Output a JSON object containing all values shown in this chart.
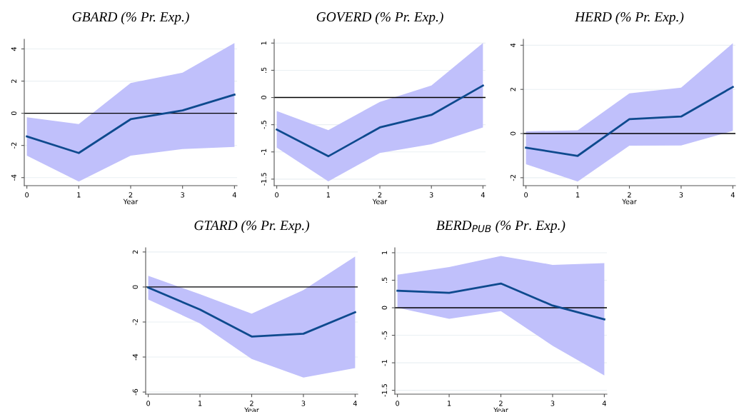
{
  "chart_data": [
    {
      "type": "line",
      "title": "GBARD (% Pr. Exp.)",
      "xlabel": "Year",
      "x": [
        0,
        1,
        2,
        3,
        4
      ],
      "xlim": [
        -0.05,
        4.05
      ],
      "xticks": [
        0,
        1,
        2,
        3,
        4
      ],
      "ylim": [
        -4.5,
        4.6
      ],
      "yticks": [
        -4,
        -2,
        0,
        2,
        4
      ],
      "grid": "y",
      "series": [
        {
          "color": "#0e4a8e",
          "values": [
            -1.44,
            -2.47,
            -0.37,
            0.18,
            1.16
          ],
          "lower": [
            -2.64,
            -4.25,
            -2.64,
            -2.22,
            -2.09
          ],
          "upper": [
            -0.25,
            -0.67,
            1.88,
            2.52,
            4.37
          ]
        }
      ],
      "ref_lines": [
        {
          "axis": "y",
          "value": 0,
          "color": "#000000"
        }
      ]
    },
    {
      "type": "line",
      "title": "GOVERD (% Pr. Exp.)",
      "xlabel": "Year",
      "x": [
        0,
        1,
        2,
        3,
        4
      ],
      "xlim": [
        -0.05,
        4.05
      ],
      "xticks": [
        0,
        1,
        2,
        3,
        4
      ],
      "ylim": [
        -1.62,
        1.07
      ],
      "yticks": [
        {
          "value": -1.5,
          "label": "-1.5"
        },
        {
          "value": -1,
          "label": "-1"
        },
        {
          "value": -0.5,
          "label": "-.5"
        },
        {
          "value": 0,
          "label": "0"
        },
        {
          "value": 0.5,
          "label": ".5"
        },
        {
          "value": 1,
          "label": "1"
        }
      ],
      "grid": "y",
      "series": [
        {
          "color": "#0e4a8e",
          "values": [
            -0.59,
            -1.08,
            -0.55,
            -0.32,
            0.22
          ],
          "lower": [
            -0.92,
            -1.54,
            -1.02,
            -0.86,
            -0.55
          ],
          "upper": [
            -0.25,
            -0.6,
            -0.08,
            0.22,
            1.0
          ]
        }
      ],
      "ref_lines": [
        {
          "axis": "y",
          "value": 0,
          "color": "#000000"
        }
      ]
    },
    {
      "type": "line",
      "title": "HERD (% Pr. Exp.)",
      "xlabel": "Year",
      "x": [
        0,
        1,
        2,
        3,
        4
      ],
      "xlim": [
        -0.05,
        4.05
      ],
      "xticks": [
        0,
        1,
        2,
        3,
        4
      ],
      "ylim": [
        -2.36,
        4.27
      ],
      "yticks": [
        -2,
        0,
        2,
        4
      ],
      "grid": "y",
      "series": [
        {
          "color": "#0e4a8e",
          "values": [
            -0.64,
            -1.01,
            0.65,
            0.77,
            2.11
          ],
          "lower": [
            -1.39,
            -2.17,
            -0.55,
            -0.54,
            0.12
          ],
          "upper": [
            0.1,
            0.15,
            1.82,
            2.08,
            4.09
          ]
        }
      ],
      "ref_lines": [
        {
          "axis": "y",
          "value": 0,
          "color": "#000000"
        }
      ]
    },
    {
      "type": "line",
      "title": "GTARD (% Pr. Exp.)",
      "xlabel": "Year",
      "x": [
        0,
        1,
        2,
        3,
        4
      ],
      "xlim": [
        -0.05,
        4.05
      ],
      "xticks": [
        0,
        1,
        2,
        3,
        4
      ],
      "ylim": [
        -6.12,
        2.24
      ],
      "yticks": [
        -6,
        -4,
        -2,
        0,
        2
      ],
      "grid": "y",
      "series": [
        {
          "color": "#0e4a8e",
          "values": [
            -0.03,
            -1.29,
            -2.83,
            -2.67,
            -1.44
          ],
          "lower": [
            -0.72,
            -2.08,
            -4.11,
            -5.17,
            -4.63
          ],
          "upper": [
            0.64,
            -0.41,
            -1.52,
            -0.18,
            1.74
          ]
        }
      ],
      "ref_lines": [
        {
          "axis": "y",
          "value": 0,
          "color": "#000000"
        }
      ]
    },
    {
      "type": "line",
      "title": "BERD$_{PUB}$ (% Pr. Exp.)",
      "xlabel": "Year",
      "x": [
        0,
        1,
        2,
        3,
        4
      ],
      "xlim": [
        -0.05,
        4.05
      ],
      "xticks": [
        0,
        1,
        2,
        3,
        4
      ],
      "ylim": [
        -1.57,
        1.09
      ],
      "yticks": [
        {
          "value": -1.5,
          "label": "-1.5"
        },
        {
          "value": -1,
          "label": "-1"
        },
        {
          "value": -0.5,
          "label": "-.5"
        },
        {
          "value": 0,
          "label": "0"
        },
        {
          "value": 0.5,
          "label": ".5"
        },
        {
          "value": 1,
          "label": "1"
        }
      ],
      "grid": "y",
      "series": [
        {
          "color": "#0e4a8e",
          "values": [
            0.31,
            0.27,
            0.44,
            0.04,
            -0.21
          ],
          "lower": [
            0.0,
            -0.2,
            -0.06,
            -0.69,
            -1.23
          ],
          "upper": [
            0.6,
            0.74,
            0.94,
            0.78,
            0.81
          ]
        }
      ],
      "ref_lines": [
        {
          "axis": "y",
          "value": 0,
          "color": "#000000"
        }
      ]
    }
  ]
}
